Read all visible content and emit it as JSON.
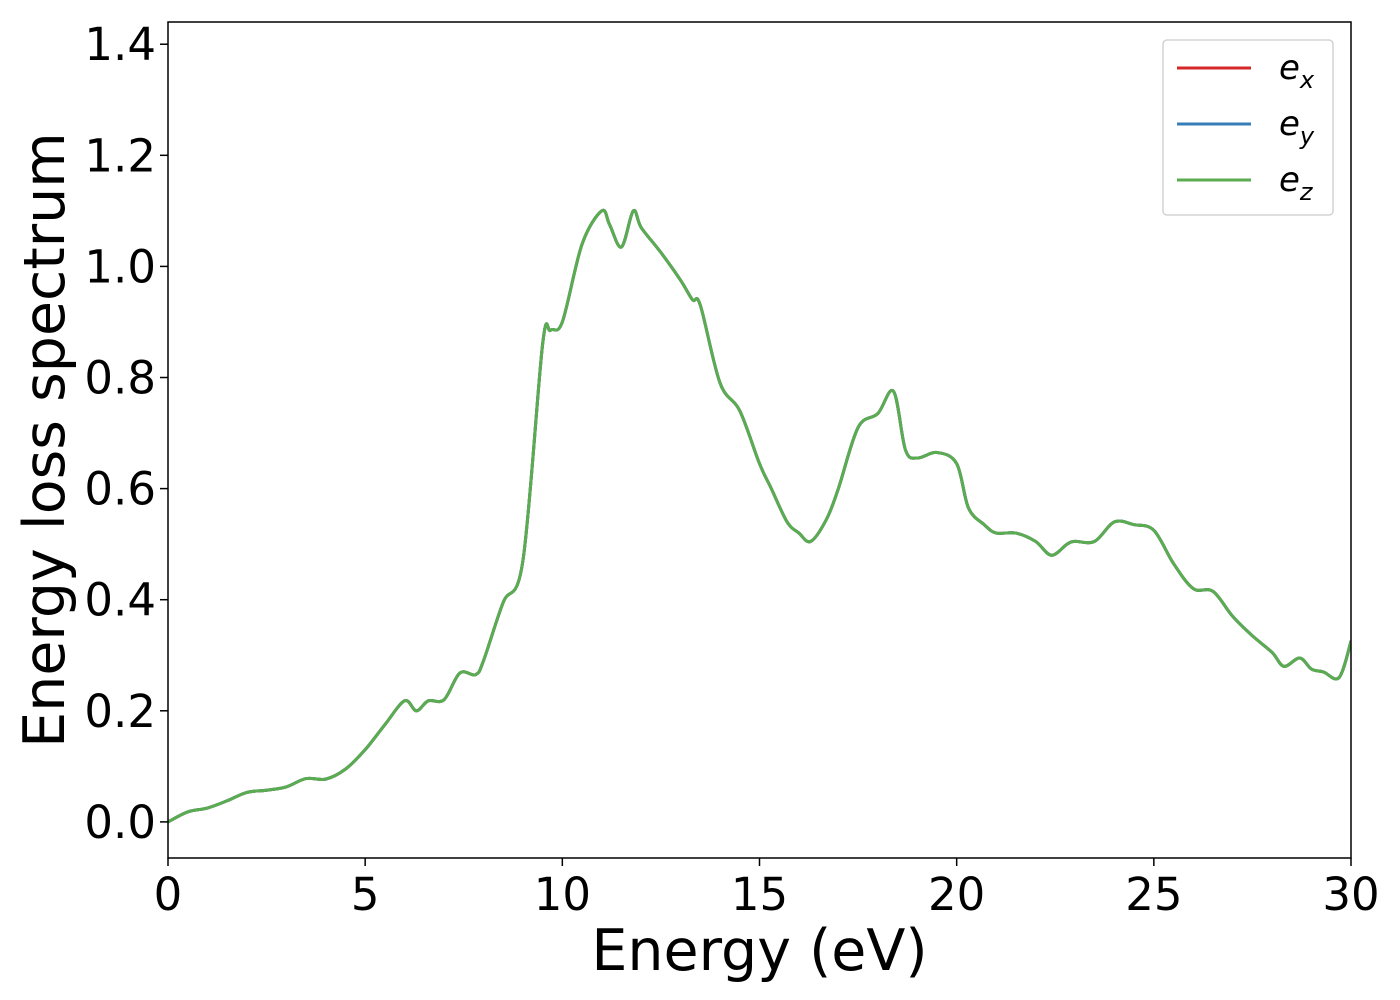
{
  "chart_data": {
    "type": "line",
    "xlabel": "Energy (eV)",
    "ylabel": "Energy loss spectrum",
    "xlim": [
      0,
      30
    ],
    "ylim": [
      -0.065,
      1.44
    ],
    "xticks": [
      0,
      5,
      10,
      15,
      20,
      25,
      30
    ],
    "xtick_labels": [
      "0",
      "5",
      "10",
      "15",
      "20",
      "25",
      "30"
    ],
    "yticks": [
      0.0,
      0.2,
      0.4,
      0.6,
      0.8,
      1.0,
      1.2,
      1.4
    ],
    "ytick_labels": [
      "0.0",
      "0.2",
      "0.4",
      "0.6",
      "0.8",
      "1.0",
      "1.2",
      "1.4"
    ],
    "grid": false,
    "legend_position": "top-right",
    "x": [
      0,
      0.5,
      1.0,
      1.5,
      2.0,
      2.5,
      3.0,
      3.5,
      4.0,
      4.5,
      5.0,
      5.5,
      6.0,
      6.3,
      6.6,
      7.0,
      7.4,
      7.8,
      8.0,
      8.5,
      9.0,
      9.5,
      9.7,
      10.0,
      10.5,
      11.0,
      11.2,
      11.5,
      11.8,
      12.0,
      12.5,
      13.0,
      13.3,
      13.5,
      14.0,
      14.5,
      15.0,
      15.3,
      15.7,
      16.0,
      16.3,
      16.7,
      17.0,
      17.5,
      18.0,
      18.4,
      18.7,
      19.0,
      19.5,
      20.0,
      20.3,
      20.7,
      21.0,
      21.5,
      22.0,
      22.4,
      22.8,
      23.0,
      23.5,
      24.0,
      24.5,
      25.0,
      25.5,
      26.0,
      26.5,
      27.0,
      27.5,
      28.0,
      28.3,
      28.7,
      29.0,
      29.3,
      29.7,
      30.0
    ],
    "series": [
      {
        "name": "e_x",
        "label_main": "e",
        "label_sub": "x",
        "color": "#d62728",
        "values": [
          0.0,
          0.018,
          0.025,
          0.038,
          0.053,
          0.057,
          0.063,
          0.078,
          0.077,
          0.095,
          0.13,
          0.175,
          0.218,
          0.2,
          0.218,
          0.22,
          0.268,
          0.265,
          0.29,
          0.395,
          0.47,
          0.86,
          0.885,
          0.9,
          1.04,
          1.1,
          1.075,
          1.035,
          1.1,
          1.07,
          1.025,
          0.975,
          0.94,
          0.93,
          0.79,
          0.74,
          0.645,
          0.6,
          0.54,
          0.52,
          0.505,
          0.545,
          0.6,
          0.71,
          0.735,
          0.775,
          0.67,
          0.655,
          0.665,
          0.645,
          0.565,
          0.535,
          0.52,
          0.52,
          0.505,
          0.48,
          0.5,
          0.505,
          0.505,
          0.54,
          0.535,
          0.525,
          0.465,
          0.42,
          0.415,
          0.37,
          0.335,
          0.305,
          0.28,
          0.295,
          0.275,
          0.27,
          0.26,
          0.325
        ]
      },
      {
        "name": "e_y",
        "label_main": "e",
        "label_sub": "y",
        "color": "#377eb8",
        "values": [
          0.0,
          0.018,
          0.025,
          0.038,
          0.053,
          0.057,
          0.063,
          0.078,
          0.077,
          0.095,
          0.13,
          0.175,
          0.218,
          0.2,
          0.218,
          0.22,
          0.268,
          0.265,
          0.29,
          0.395,
          0.47,
          0.86,
          0.885,
          0.9,
          1.04,
          1.1,
          1.075,
          1.035,
          1.1,
          1.07,
          1.025,
          0.975,
          0.94,
          0.93,
          0.79,
          0.74,
          0.645,
          0.6,
          0.54,
          0.52,
          0.505,
          0.545,
          0.6,
          0.71,
          0.735,
          0.775,
          0.67,
          0.655,
          0.665,
          0.645,
          0.565,
          0.535,
          0.52,
          0.52,
          0.505,
          0.48,
          0.5,
          0.505,
          0.505,
          0.54,
          0.535,
          0.525,
          0.465,
          0.42,
          0.415,
          0.37,
          0.335,
          0.305,
          0.28,
          0.295,
          0.275,
          0.27,
          0.26,
          0.325
        ]
      },
      {
        "name": "e_z",
        "label_main": "e",
        "label_sub": "z",
        "color": "#5aac51",
        "values": [
          0.0,
          0.018,
          0.025,
          0.038,
          0.053,
          0.057,
          0.063,
          0.078,
          0.077,
          0.095,
          0.13,
          0.175,
          0.218,
          0.2,
          0.218,
          0.22,
          0.268,
          0.265,
          0.29,
          0.395,
          0.47,
          0.86,
          0.885,
          0.9,
          1.04,
          1.1,
          1.075,
          1.035,
          1.1,
          1.07,
          1.025,
          0.975,
          0.94,
          0.93,
          0.79,
          0.74,
          0.645,
          0.6,
          0.54,
          0.52,
          0.505,
          0.545,
          0.6,
          0.71,
          0.735,
          0.775,
          0.67,
          0.655,
          0.665,
          0.645,
          0.565,
          0.535,
          0.52,
          0.52,
          0.505,
          0.48,
          0.5,
          0.505,
          0.505,
          0.54,
          0.535,
          0.525,
          0.465,
          0.42,
          0.415,
          0.37,
          0.335,
          0.305,
          0.28,
          0.295,
          0.275,
          0.27,
          0.26,
          0.325
        ]
      }
    ]
  }
}
